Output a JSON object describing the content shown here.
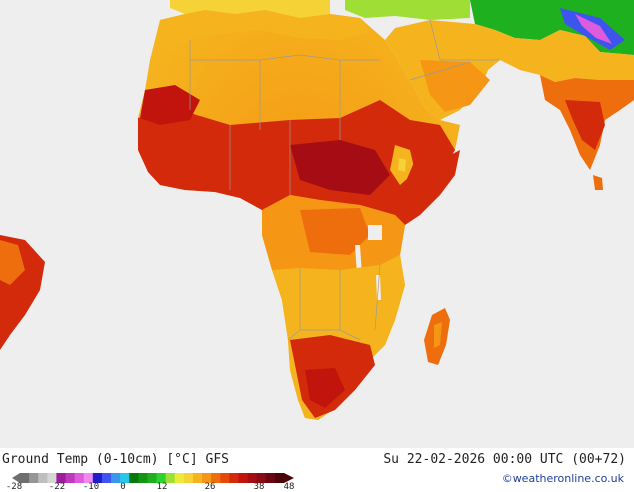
{
  "map": {
    "title": "Ground Temp (0-10cm) [°C] GFS",
    "datetime": "Su 22-02-2026 00:00 UTC (00+72)",
    "credit": "©weatheronline.co.uk",
    "region": "Africa",
    "colors": {
      "ocean": "#eeeeee",
      "border": "#9a9a9a",
      "warm": "#f7a21e",
      "hot": "#ec5a10",
      "very_hot": "#d9100f",
      "extreme": "#b10d20",
      "mild": "#f8c23a",
      "cool_green": "#22b04a",
      "cold_blue": "#2f52d6",
      "highland": "#f4e27a"
    }
  },
  "legend": {
    "ticks": [
      "-28",
      "-22",
      "-10",
      "0",
      "12",
      "26",
      "38",
      "48"
    ],
    "colors": [
      "#6e6e6e",
      "#969696",
      "#bebebe",
      "#d6d6d6",
      "#9a1e9a",
      "#c037c0",
      "#dd5bdd",
      "#f08af0",
      "#1e1ecc",
      "#3d54ee",
      "#3c96f0",
      "#25c8e6",
      "#087808",
      "#139413",
      "#1eb01e",
      "#2ed22e",
      "#9ede35",
      "#e9ec3a",
      "#f5d235",
      "#f5b41e",
      "#f59614",
      "#ee6e0d",
      "#e64a0a",
      "#d22a0a",
      "#c0140c",
      "#a50c14",
      "#8c0a14",
      "#690812",
      "#4b060c"
    ]
  }
}
